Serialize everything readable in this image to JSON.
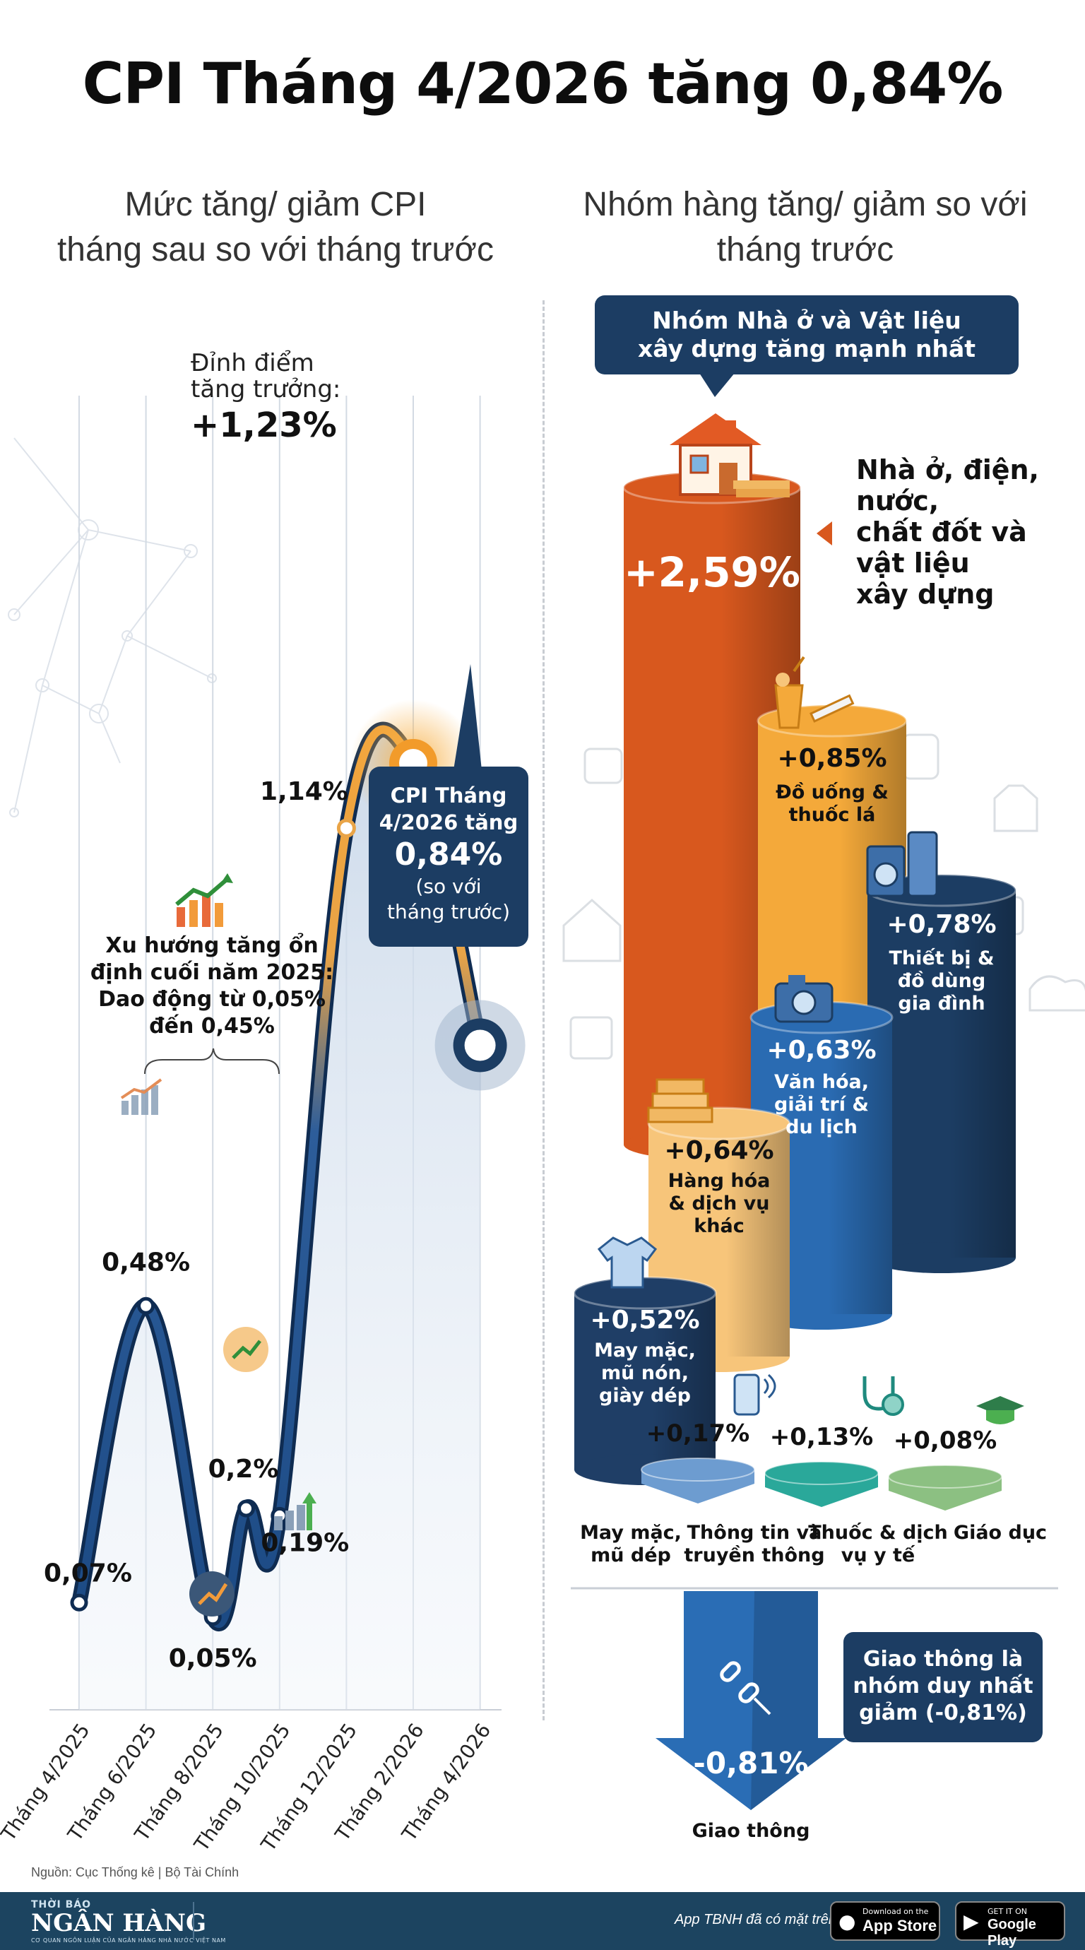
{
  "title": "CPI Tháng 4/2026 tăng 0,84%",
  "left_subtitle": [
    "Mức tăng/ giảm CPI",
    "tháng sau so với tháng trước"
  ],
  "right_subtitle": [
    "Nhóm hàng tăng/ giảm so với",
    "tháng trước"
  ],
  "peak_annotation": {
    "line1": "Đỉnh điểm",
    "line2": "tăng trưởng:",
    "value": "+1,23%"
  },
  "trend_annotation": {
    "lines": [
      "Xu hướng tăng ổn",
      "định cuối năm 2025:",
      "Dao động từ 0,05%",
      "đến 0,45%"
    ]
  },
  "current_callout": {
    "line1": "CPI Tháng",
    "line2": "4/2026 tăng",
    "value": "0,84%",
    "line3": "(so với",
    "line4": "tháng trước)"
  },
  "chart_data": [
    {
      "type": "line",
      "x_tick_labels": [
        "Tháng 4/2025",
        "Tháng 6/2025",
        "Tháng 8/2025",
        "Tháng 10/2025",
        "Tháng 12/2025",
        "Tháng 2/2026",
        "Tháng 4/2026"
      ],
      "points": [
        {
          "x": "Tháng 4/2025",
          "y": 0.07,
          "label": "0,07%"
        },
        {
          "x": "Tháng 6/2025",
          "y": 0.48,
          "label": "0,48%"
        },
        {
          "x": "Tháng 8/2025",
          "y": 0.05,
          "label": "0,05%"
        },
        {
          "x": "Tháng 9/2025",
          "y": 0.2,
          "label": "0,2%"
        },
        {
          "x": "Tháng 10/2025",
          "y": 0.19,
          "label": "0,19%"
        },
        {
          "x": "Tháng 12/2025",
          "y": 1.14,
          "label": "1,14%"
        },
        {
          "x": "Tháng 2/2026",
          "y": 1.23,
          "label": ""
        },
        {
          "x": "Tháng 4/2026",
          "y": 0.84,
          "label": ""
        }
      ]
    },
    {
      "type": "bar",
      "title": "Nhóm Nhà ở và Vật liệu xây dựng tăng mạnh nhất",
      "bars": [
        {
          "value": 2.59,
          "label": "+2,59%",
          "name": "Nhà ở, điện, nước, chất đốt và vật liệu xây dựng",
          "color": "#d8581e"
        },
        {
          "value": 0.85,
          "label": "+0,85%",
          "name": "Đồ uống & thuốc lá",
          "color": "#f4a93a"
        },
        {
          "value": 0.78,
          "label": "+0,78%",
          "name": "Thiết bị & đồ dùng gia đình",
          "color": "#1c3d63"
        },
        {
          "value": 0.63,
          "label": "+0,63%",
          "name": "Văn hóa, giải trí & du lịch",
          "color": "#2a6bb2"
        },
        {
          "value": 0.64,
          "label": "+0,64%",
          "name": "Hàng hóa & dịch vụ khác",
          "color": "#f7c57a"
        },
        {
          "value": 0.52,
          "label": "+0,52%",
          "name": "May mặc, mũ nón, giày dép",
          "color": "#1f3e66"
        },
        {
          "value": 0.17,
          "label": "+0,17%",
          "name": "Thông tin và truyền thông",
          "color": "#6d9cd0"
        },
        {
          "value": 0.13,
          "label": "+0,13%",
          "name": "Thuốc & dịch vụ y tế",
          "color": "#2aa89a"
        },
        {
          "value": 0.08,
          "label": "+0,08%",
          "name": "Giáo dục",
          "color": "#8cc082"
        },
        {
          "value": -0.81,
          "label": "-0,81%",
          "name": "Giao thông",
          "color": "#2a6db5"
        }
      ]
    }
  ],
  "housing_label": [
    "Nhà ở, điện,",
    "nước,",
    "chất đốt và",
    "vật liệu",
    "xây dựng"
  ],
  "bar_texts": {
    "drinks": [
      "Đồ uống &",
      "thuốc lá"
    ],
    "appliances": [
      "Thiết bị &",
      "đồ dùng",
      "gia đình"
    ],
    "culture": [
      "Văn hóa,",
      "giải trí &",
      "du lịch"
    ],
    "other": [
      "Hàng hóa",
      "& dịch vụ",
      "khác"
    ],
    "clothing": [
      "May mặc,",
      "mũ nón,",
      "giày dép"
    ]
  },
  "bottom_labels": {
    "clothing": [
      "May mặc,",
      "mũ dép"
    ],
    "comm": [
      "Thông tin và",
      "truyền thông"
    ],
    "health": [
      "Thuốc & dịch",
      "vụ y tế"
    ],
    "edu": [
      "Giáo dục"
    ],
    "transport": [
      "Giao thông"
    ]
  },
  "transport_callout": [
    "Giao thông là",
    "nhóm duy nhất",
    "giảm (-0,81%)"
  ],
  "source": "Nguồn: Cục Thống kê | Bộ Tài Chính",
  "footer": {
    "logo_top": "THỜI BÁO",
    "logo_main": "NGÂN HÀNG",
    "logo_sub": "CƠ QUAN NGÔN LUẬN CỦA NGÂN HÀNG NHÀ NƯỚC VIỆT NAM",
    "app_text": "App TBNH đã có mặt trên",
    "appstore_small": "Download on the",
    "appstore_big": "App Store",
    "gplay_small": "GET IT ON",
    "gplay_big": "Google Play"
  }
}
